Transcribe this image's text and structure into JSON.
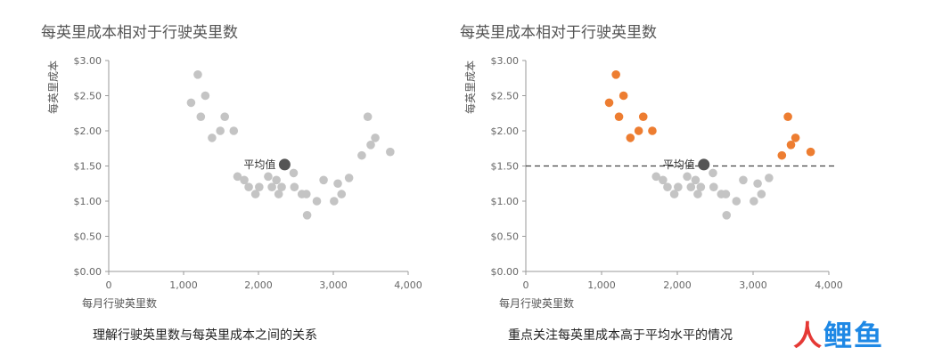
{
  "chart_data": [
    {
      "type": "scatter",
      "title": "每英里成本相对于行驶英里数",
      "xlabel": "每月行驶英里数",
      "ylabel": "每英里成本",
      "xlim": [
        0,
        4000
      ],
      "ylim": [
        0,
        3
      ],
      "x_ticks": [
        0,
        1000,
        2000,
        3000,
        4000
      ],
      "x_tick_labels": [
        "0",
        "1,000",
        "2,000",
        "3,000",
        "4,000"
      ],
      "y_ticks": [
        0,
        0.5,
        1,
        1.5,
        2,
        2.5,
        3
      ],
      "y_tick_labels": [
        "$0.00",
        "$0.50",
        "$1.00",
        "$1.50",
        "$2.00",
        "$2.50",
        "$3.00"
      ],
      "grid": false,
      "colors": {
        "point": "#c4c4c4",
        "mean": "#555555",
        "axis": "#999999"
      },
      "points": [
        {
          "x": 1100,
          "y": 2.4
        },
        {
          "x": 1190,
          "y": 2.8
        },
        {
          "x": 1230,
          "y": 2.2
        },
        {
          "x": 1290,
          "y": 2.5
        },
        {
          "x": 1380,
          "y": 1.9
        },
        {
          "x": 1490,
          "y": 2.0
        },
        {
          "x": 1550,
          "y": 2.2
        },
        {
          "x": 1670,
          "y": 2.0
        },
        {
          "x": 1720,
          "y": 1.35
        },
        {
          "x": 1810,
          "y": 1.3
        },
        {
          "x": 1870,
          "y": 1.2
        },
        {
          "x": 1960,
          "y": 1.1
        },
        {
          "x": 2010,
          "y": 1.2
        },
        {
          "x": 2130,
          "y": 1.35
        },
        {
          "x": 2180,
          "y": 1.2
        },
        {
          "x": 2240,
          "y": 1.3
        },
        {
          "x": 2270,
          "y": 1.1
        },
        {
          "x": 2310,
          "y": 1.2
        },
        {
          "x": 2470,
          "y": 1.4
        },
        {
          "x": 2480,
          "y": 1.2
        },
        {
          "x": 2580,
          "y": 1.1
        },
        {
          "x": 2640,
          "y": 1.1
        },
        {
          "x": 2650,
          "y": 0.8
        },
        {
          "x": 2780,
          "y": 1.0
        },
        {
          "x": 2870,
          "y": 1.3
        },
        {
          "x": 3010,
          "y": 1.0
        },
        {
          "x": 3060,
          "y": 1.25
        },
        {
          "x": 3110,
          "y": 1.1
        },
        {
          "x": 3210,
          "y": 1.33
        },
        {
          "x": 3380,
          "y": 1.65
        },
        {
          "x": 3460,
          "y": 2.2
        },
        {
          "x": 3500,
          "y": 1.8
        },
        {
          "x": 3560,
          "y": 1.9
        },
        {
          "x": 3760,
          "y": 1.7
        }
      ],
      "mean_point": {
        "x": 2350,
        "y": 1.52,
        "label": "平均值"
      },
      "caption": "理解行驶英里数与每英里成本之间的关系"
    },
    {
      "type": "scatter",
      "title": "每英里成本相对于行驶英里数",
      "xlabel": "每月行驶英里数",
      "ylabel": "每英里成本",
      "xlim": [
        0,
        4000
      ],
      "ylim": [
        0,
        3
      ],
      "x_ticks": [
        0,
        1000,
        2000,
        3000,
        4000
      ],
      "x_tick_labels": [
        "0",
        "1,000",
        "2,000",
        "3,000",
        "4,000"
      ],
      "y_ticks": [
        0,
        0.5,
        1,
        1.5,
        2,
        2.5,
        3
      ],
      "y_tick_labels": [
        "$0.00",
        "$0.50",
        "$1.00",
        "$1.50",
        "$2.00",
        "$2.50",
        "$3.00"
      ],
      "grid": false,
      "reference_line": {
        "y": 1.5,
        "style": "dashed"
      },
      "colors": {
        "point": "#c4c4c4",
        "highlight": "#ed7d31",
        "mean": "#555555",
        "axis": "#999999",
        "reference": "#444444"
      },
      "points": [
        {
          "x": 1100,
          "y": 2.4
        },
        {
          "x": 1190,
          "y": 2.8
        },
        {
          "x": 1230,
          "y": 2.2
        },
        {
          "x": 1290,
          "y": 2.5
        },
        {
          "x": 1380,
          "y": 1.9
        },
        {
          "x": 1490,
          "y": 2.0
        },
        {
          "x": 1550,
          "y": 2.2
        },
        {
          "x": 1670,
          "y": 2.0
        },
        {
          "x": 1720,
          "y": 1.35
        },
        {
          "x": 1810,
          "y": 1.3
        },
        {
          "x": 1870,
          "y": 1.2
        },
        {
          "x": 1960,
          "y": 1.1
        },
        {
          "x": 2010,
          "y": 1.2
        },
        {
          "x": 2130,
          "y": 1.35
        },
        {
          "x": 2180,
          "y": 1.2
        },
        {
          "x": 2240,
          "y": 1.3
        },
        {
          "x": 2270,
          "y": 1.1
        },
        {
          "x": 2310,
          "y": 1.2
        },
        {
          "x": 2470,
          "y": 1.4
        },
        {
          "x": 2480,
          "y": 1.2
        },
        {
          "x": 2580,
          "y": 1.1
        },
        {
          "x": 2640,
          "y": 1.1
        },
        {
          "x": 2650,
          "y": 0.8
        },
        {
          "x": 2780,
          "y": 1.0
        },
        {
          "x": 2870,
          "y": 1.3
        },
        {
          "x": 3010,
          "y": 1.0
        },
        {
          "x": 3060,
          "y": 1.25
        },
        {
          "x": 3110,
          "y": 1.1
        },
        {
          "x": 3210,
          "y": 1.33
        },
        {
          "x": 3380,
          "y": 1.65
        },
        {
          "x": 3460,
          "y": 2.2
        },
        {
          "x": 3500,
          "y": 1.8
        },
        {
          "x": 3560,
          "y": 1.9
        },
        {
          "x": 3760,
          "y": 1.7
        }
      ],
      "mean_point": {
        "x": 2350,
        "y": 1.52,
        "label": "平均值"
      },
      "caption": "重点关注每英里成本高于平均水平的情况"
    }
  ],
  "watermark": {
    "part1": "人",
    "part2": "鲤鱼"
  }
}
